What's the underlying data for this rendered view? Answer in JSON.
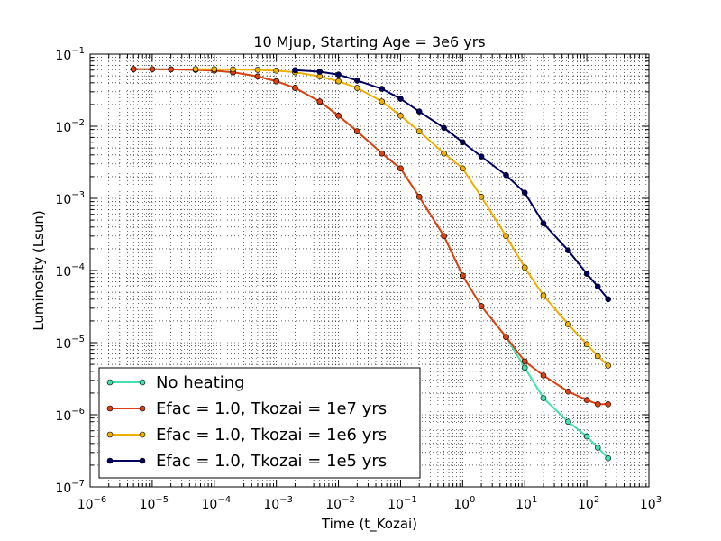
{
  "chart_data": {
    "type": "line",
    "title": "10 Mjup, Starting Age = 3e6 yrs",
    "xlabel": "Time (t_Kozai)",
    "ylabel": "Luminosity (Lsun)",
    "xscale": "log",
    "yscale": "log",
    "xlim": [
      1e-06,
      1000
    ],
    "ylim": [
      1e-07,
      0.1
    ],
    "x_tick_exponents": [
      -6,
      -5,
      -4,
      -3,
      -2,
      -1,
      0,
      1,
      2,
      3
    ],
    "y_tick_exponents": [
      -7,
      -6,
      -5,
      -4,
      -3,
      -2,
      -1
    ],
    "tick_base": "10",
    "grid": true,
    "grid_style": "dotted",
    "legend_position": "lower-left",
    "series": [
      {
        "name": "No heating",
        "color": "#40e0b0",
        "marker": "circle",
        "points": [
          [
            5e-06,
            0.062
          ],
          [
            1e-05,
            0.0618
          ],
          [
            2e-05,
            0.0615
          ],
          [
            5e-05,
            0.0605
          ],
          [
            0.0001,
            0.059
          ],
          [
            0.0002,
            0.056
          ],
          [
            0.0005,
            0.049
          ],
          [
            0.001,
            0.042
          ],
          [
            0.002,
            0.034
          ],
          [
            0.005,
            0.022
          ],
          [
            0.01,
            0.014
          ],
          [
            0.02,
            0.0085
          ],
          [
            0.05,
            0.0042
          ],
          [
            0.1,
            0.0026
          ],
          [
            0.2,
            0.00105
          ],
          [
            0.5,
            0.0003
          ],
          [
            1,
            8.5e-05
          ],
          [
            2,
            3.2e-05
          ],
          [
            5,
            1.2e-05
          ],
          [
            10,
            4.5e-06
          ],
          [
            20,
            1.7e-06
          ],
          [
            50,
            8e-07
          ],
          [
            100,
            5e-07
          ],
          [
            150,
            3.5e-07
          ],
          [
            220,
            2.5e-07
          ]
        ]
      },
      {
        "name": "Efac = 1.0, Tkozai = 1e7 yrs",
        "color": "#e04010",
        "marker": "circle",
        "points": [
          [
            5e-06,
            0.062
          ],
          [
            1e-05,
            0.0618
          ],
          [
            2e-05,
            0.0615
          ],
          [
            5e-05,
            0.0605
          ],
          [
            0.0001,
            0.059
          ],
          [
            0.0002,
            0.056
          ],
          [
            0.0005,
            0.049
          ],
          [
            0.001,
            0.042
          ],
          [
            0.002,
            0.034
          ],
          [
            0.005,
            0.022
          ],
          [
            0.01,
            0.014
          ],
          [
            0.02,
            0.0085
          ],
          [
            0.05,
            0.0042
          ],
          [
            0.1,
            0.0026
          ],
          [
            0.2,
            0.00105
          ],
          [
            0.5,
            0.0003
          ],
          [
            1,
            8.5e-05
          ],
          [
            2,
            3.2e-05
          ],
          [
            5,
            1.2e-05
          ],
          [
            10,
            5.5e-06
          ],
          [
            20,
            3.5e-06
          ],
          [
            50,
            2.1e-06
          ],
          [
            100,
            1.6e-06
          ],
          [
            150,
            1.4e-06
          ],
          [
            220,
            1.4e-06
          ]
        ]
      },
      {
        "name": "Efac = 1.0, Tkozai = 1e6 yrs",
        "color": "#f0b000",
        "marker": "circle",
        "points": [
          [
            5e-05,
            0.062
          ],
          [
            0.0001,
            0.0618
          ],
          [
            0.0002,
            0.0614
          ],
          [
            0.0005,
            0.0605
          ],
          [
            0.001,
            0.059
          ],
          [
            0.002,
            0.056
          ],
          [
            0.005,
            0.049
          ],
          [
            0.01,
            0.042
          ],
          [
            0.02,
            0.034
          ],
          [
            0.05,
            0.022
          ],
          [
            0.1,
            0.014
          ],
          [
            0.2,
            0.0085
          ],
          [
            0.5,
            0.0042
          ],
          [
            1,
            0.0026
          ],
          [
            2,
            0.00105
          ],
          [
            5,
            0.0003
          ],
          [
            10,
            0.00011
          ],
          [
            20,
            4.5e-05
          ],
          [
            50,
            1.8e-05
          ],
          [
            100,
            9.5e-06
          ],
          [
            150,
            6.5e-06
          ],
          [
            220,
            4.8e-06
          ]
        ]
      },
      {
        "name": "Efac = 1.0, Tkozai = 1e5 yrs",
        "color": "#000060",
        "marker": "circle",
        "points": [
          [
            0.002,
            0.06
          ],
          [
            0.005,
            0.057
          ],
          [
            0.01,
            0.052
          ],
          [
            0.02,
            0.043
          ],
          [
            0.05,
            0.033
          ],
          [
            0.1,
            0.024
          ],
          [
            0.2,
            0.016
          ],
          [
            0.5,
            0.0095
          ],
          [
            1,
            0.006
          ],
          [
            2,
            0.0038
          ],
          [
            5,
            0.0021
          ],
          [
            10,
            0.0012
          ],
          [
            20,
            0.00045
          ],
          [
            50,
            0.00019
          ],
          [
            100,
            9e-05
          ],
          [
            150,
            6e-05
          ],
          [
            220,
            4e-05
          ]
        ]
      }
    ]
  }
}
